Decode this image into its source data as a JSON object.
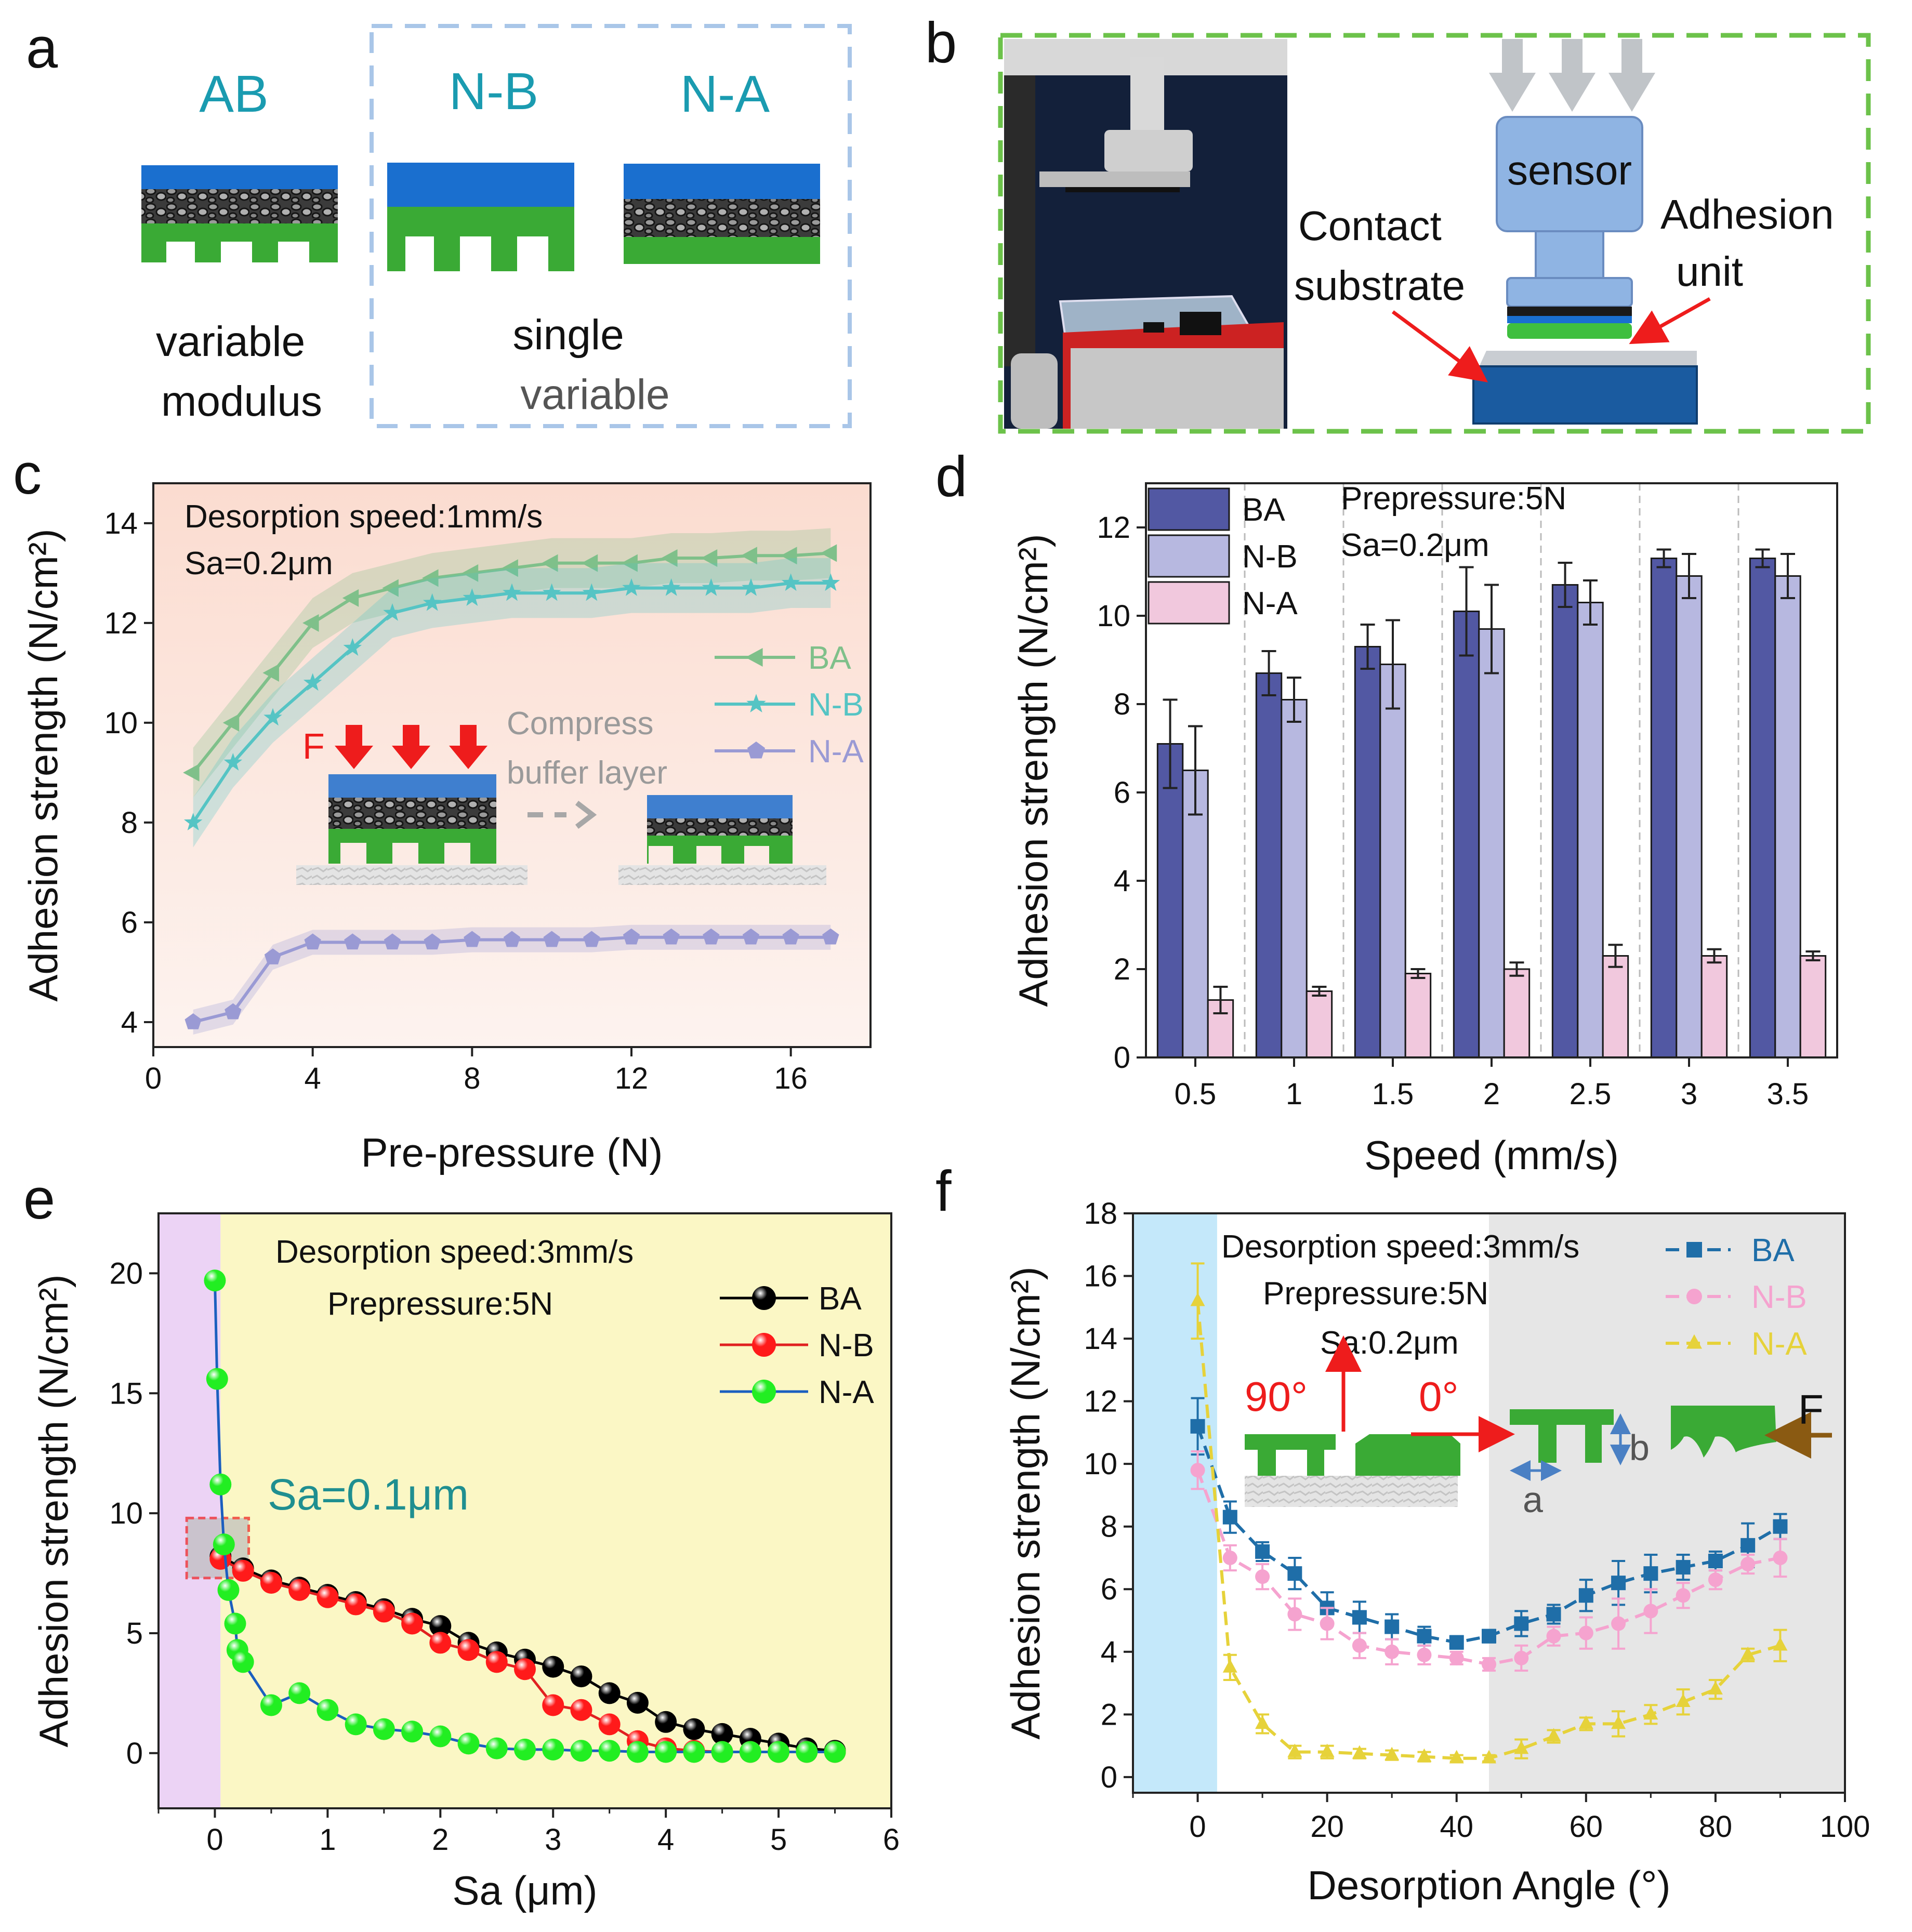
{
  "panels": {
    "a": {
      "letter": "a",
      "labels": {
        "ab": "AB",
        "nb": "N-B",
        "na": "N-A"
      },
      "caption_left": [
        "variable",
        "modulus"
      ],
      "caption_right": [
        "single",
        "variable"
      ],
      "colors": {
        "cap": "#1565c0",
        "pillar": "#3aaa35",
        "title": "#1a9bb0",
        "box": "#a9c6e8"
      }
    },
    "b": {
      "letter": "b",
      "sensor": "sensor",
      "contact": [
        "Contact",
        "substrate"
      ],
      "adhesion": [
        "Adhesion",
        "unit"
      ],
      "colors": {
        "frame": "#6cc24a",
        "sensor": "#8fb4e3",
        "substrate": "#1a5ba0"
      }
    },
    "c": {
      "letter": "c",
      "notes": [
        "Desorption speed:1mm/s",
        "Sa=0.2μm"
      ],
      "inset_force": "F",
      "inset_text": [
        "Compress",
        "buffer layer"
      ]
    },
    "d": {
      "letter": "d",
      "notes": [
        "Prepressure:5N",
        "Sa=0.2μm"
      ]
    },
    "e": {
      "letter": "e",
      "notes": [
        "Desorption speed:3mm/s",
        "Prepressure:5N"
      ],
      "annotation": "Sa=0.1μm"
    },
    "f": {
      "letter": "f",
      "notes": [
        "Desorption speed:3mm/s",
        "Prepressure:5N",
        "Sa:0.2μm"
      ],
      "angle90": "90°",
      "angle0": "0°",
      "label_a": "a",
      "label_b": "b",
      "label_F": "F"
    }
  },
  "chart_data": [
    {
      "id": "c",
      "type": "line",
      "xlabel": "Pre-pressure (N)",
      "ylabel": "Adhesion strength (N/cm²)",
      "xlim": [
        0,
        18
      ],
      "ylim": [
        3.5,
        14.8
      ],
      "xticks": [
        0,
        4,
        8,
        12,
        16
      ],
      "yticks": [
        4,
        6,
        8,
        10,
        12,
        14
      ],
      "legend": "right",
      "x": [
        1,
        2,
        3,
        4,
        5,
        6,
        7,
        8,
        9,
        10,
        11,
        12,
        13,
        14,
        15,
        16,
        17
      ],
      "series": [
        {
          "name": "BA",
          "marker": "triangle-left",
          "color": "#7fc08a",
          "values": [
            9.0,
            10.0,
            11.0,
            12.0,
            12.5,
            12.7,
            12.9,
            13.0,
            13.1,
            13.2,
            13.2,
            13.2,
            13.3,
            13.3,
            13.35,
            13.35,
            13.4
          ]
        },
        {
          "name": "N-B",
          "marker": "star",
          "color": "#55c4c4",
          "values": [
            8.0,
            9.2,
            10.1,
            10.8,
            11.5,
            12.2,
            12.4,
            12.5,
            12.6,
            12.6,
            12.6,
            12.7,
            12.7,
            12.7,
            12.7,
            12.8,
            12.8
          ]
        },
        {
          "name": "N-A",
          "marker": "pentagon",
          "color": "#9a9ad4",
          "values": [
            4.0,
            4.2,
            5.3,
            5.6,
            5.6,
            5.6,
            5.6,
            5.65,
            5.65,
            5.65,
            5.65,
            5.7,
            5.7,
            5.7,
            5.7,
            5.7,
            5.7
          ]
        }
      ]
    },
    {
      "id": "d",
      "type": "bar",
      "xlabel": "Speed (mm/s)",
      "ylabel": "Adhesion strength (N/cm²)",
      "ylim": [
        0,
        13
      ],
      "yticks": [
        0,
        2,
        4,
        6,
        8,
        10,
        12
      ],
      "legend": "top-left",
      "categories": [
        "0.5",
        "1",
        "1.5",
        "2",
        "2.5",
        "3",
        "3.5"
      ],
      "series": [
        {
          "name": "BA",
          "color": "#5258a3",
          "values": [
            7.1,
            8.7,
            9.3,
            10.1,
            10.7,
            11.3,
            11.3
          ],
          "errors": [
            1.0,
            0.5,
            0.5,
            1.0,
            0.5,
            0.2,
            0.2
          ]
        },
        {
          "name": "N-B",
          "color": "#b7b8e0",
          "values": [
            6.5,
            8.1,
            8.9,
            9.7,
            10.3,
            10.9,
            10.9
          ],
          "errors": [
            1.0,
            0.5,
            1.0,
            1.0,
            0.5,
            0.5,
            0.5
          ]
        },
        {
          "name": "N-A",
          "color": "#f1c8dd",
          "values": [
            1.3,
            1.5,
            1.9,
            2.0,
            2.3,
            2.3,
            2.3
          ],
          "errors": [
            0.3,
            0.1,
            0.1,
            0.15,
            0.25,
            0.15,
            0.1
          ]
        }
      ]
    },
    {
      "id": "e",
      "type": "line",
      "xlabel": "Sa (μm)",
      "ylabel": "Adhesion strength (N/cm²)",
      "xlim": [
        -0.5,
        6
      ],
      "ylim": [
        -2.3,
        22.5
      ],
      "xticks": [
        0,
        1,
        2,
        3,
        4,
        5,
        6
      ],
      "yticks": [
        0,
        5,
        10,
        15,
        20
      ],
      "legend": "top-right",
      "series": [
        {
          "name": "BA",
          "color": "#000000",
          "line_color": "#000000",
          "x": [
            0.05,
            0.25,
            0.5,
            0.75,
            1.0,
            1.25,
            1.5,
            1.75,
            2.0,
            2.25,
            2.5,
            2.75,
            3.0,
            3.25,
            3.5,
            3.75,
            4.0,
            4.25,
            4.5,
            4.75,
            5.0,
            5.25,
            5.5
          ],
          "values": [
            8.2,
            7.7,
            7.2,
            6.9,
            6.6,
            6.3,
            6.0,
            5.6,
            5.3,
            4.6,
            4.2,
            3.9,
            3.6,
            3.2,
            2.5,
            2.1,
            1.3,
            1.0,
            0.8,
            0.6,
            0.4,
            0.2,
            0.1
          ]
        },
        {
          "name": "N-B",
          "color": "#ff1a1a",
          "line_color": "#e02020",
          "x": [
            0.05,
            0.25,
            0.5,
            0.75,
            1.0,
            1.25,
            1.5,
            1.75,
            2.0,
            2.25,
            2.5,
            2.75,
            3.0,
            3.25,
            3.5,
            3.75,
            4.0,
            4.25,
            4.5,
            4.75,
            5.0,
            5.25,
            5.5
          ],
          "values": [
            8.1,
            7.6,
            7.1,
            6.8,
            6.5,
            6.2,
            5.9,
            5.4,
            4.6,
            4.3,
            3.8,
            3.5,
            2.0,
            1.8,
            1.2,
            0.5,
            0.2,
            0.1,
            0.05,
            0.05,
            0.05,
            0.05,
            0.05
          ]
        },
        {
          "name": "N-A",
          "color": "#22ee22",
          "line_color": "#1b5fbf",
          "x": [
            0.0,
            0.02,
            0.05,
            0.08,
            0.12,
            0.18,
            0.2,
            0.25,
            0.5,
            0.75,
            1.0,
            1.25,
            1.5,
            1.75,
            2.0,
            2.25,
            2.5,
            2.75,
            3.0,
            3.25,
            3.5,
            3.75,
            4.0,
            4.25,
            4.5,
            4.75,
            5.0,
            5.25,
            5.5
          ],
          "values": [
            19.7,
            15.6,
            11.2,
            8.7,
            6.8,
            5.4,
            4.3,
            3.8,
            2.0,
            2.5,
            1.8,
            1.2,
            1.0,
            0.9,
            0.7,
            0.4,
            0.2,
            0.15,
            0.15,
            0.1,
            0.1,
            0.05,
            0.05,
            0.05,
            0.05,
            0.05,
            0.05,
            0.05,
            0.05
          ]
        }
      ]
    },
    {
      "id": "f",
      "type": "line",
      "xlabel": "Desorption Angle (°)",
      "ylabel": "Adhesion strength (N/cm²)",
      "xlim": [
        -10,
        100
      ],
      "ylim": [
        -0.5,
        18
      ],
      "xticks": [
        0,
        20,
        40,
        60,
        80,
        100
      ],
      "yticks": [
        0,
        2,
        4,
        6,
        8,
        10,
        12,
        14,
        16,
        18
      ],
      "legend": "top-right",
      "x": [
        0,
        5,
        10,
        15,
        20,
        25,
        30,
        35,
        40,
        45,
        50,
        55,
        60,
        65,
        70,
        75,
        80,
        85,
        90
      ],
      "series": [
        {
          "name": "BA",
          "marker": "square",
          "color": "#1f6ea8",
          "values": [
            11.2,
            8.3,
            7.2,
            6.5,
            5.4,
            5.1,
            4.8,
            4.5,
            4.3,
            4.5,
            4.9,
            5.2,
            5.8,
            6.2,
            6.5,
            6.7,
            6.9,
            7.4,
            8.0
          ],
          "errors": [
            0.9,
            0.5,
            0.3,
            0.5,
            0.5,
            0.5,
            0.4,
            0.3,
            0.2,
            0.2,
            0.4,
            0.3,
            0.5,
            0.7,
            0.6,
            0.4,
            0.3,
            0.7,
            0.4
          ]
        },
        {
          "name": "N-B",
          "marker": "circle",
          "color": "#f5a3cf",
          "values": [
            9.8,
            7.0,
            6.4,
            5.2,
            4.9,
            4.2,
            4.0,
            3.9,
            3.8,
            3.6,
            3.8,
            4.5,
            4.6,
            4.9,
            5.3,
            5.8,
            6.3,
            6.8,
            7.0
          ],
          "errors": [
            0.6,
            0.4,
            0.4,
            0.5,
            0.5,
            0.4,
            0.4,
            0.3,
            0.2,
            0.2,
            0.4,
            0.3,
            0.5,
            0.8,
            0.7,
            0.4,
            0.3,
            0.3,
            0.6
          ]
        },
        {
          "name": "N-A",
          "marker": "triangle",
          "color": "#e6d23a",
          "values": [
            15.2,
            3.5,
            1.7,
            0.8,
            0.8,
            0.75,
            0.7,
            0.65,
            0.6,
            0.6,
            0.9,
            1.3,
            1.7,
            1.7,
            2.0,
            2.4,
            2.8,
            3.9,
            4.2
          ],
          "errors": [
            1.2,
            0.4,
            0.3,
            0.2,
            0.2,
            0.15,
            0.15,
            0.15,
            0.1,
            0.1,
            0.3,
            0.2,
            0.2,
            0.4,
            0.3,
            0.4,
            0.3,
            0.2,
            0.5
          ]
        }
      ]
    }
  ]
}
